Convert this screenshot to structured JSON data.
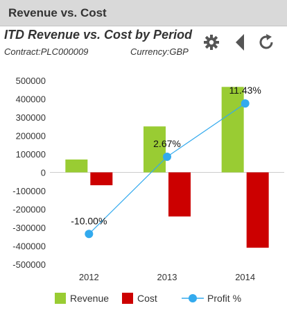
{
  "panel": {
    "title": "Revenue vs. Cost",
    "chart_title": "ITD Revenue vs. Cost by Period",
    "contract": "Contract:PLC000009",
    "currency": "Currency:GBP"
  },
  "toolbar": {
    "icons": [
      "gear-icon",
      "back-triangle-icon",
      "refresh-icon"
    ],
    "icon_color": "#555555"
  },
  "colors": {
    "revenue": "#99cc33",
    "cost": "#cc0000",
    "profit": "#33aaee",
    "header_bg": "#d9d9d9"
  },
  "chart_data": {
    "type": "bar",
    "categories": [
      "2012",
      "2013",
      "2014"
    ],
    "series": [
      {
        "name": "Revenue",
        "type": "bar",
        "values": [
          70000,
          250000,
          465000
        ]
      },
      {
        "name": "Cost",
        "type": "bar",
        "values": [
          -70000,
          -240000,
          -410000
        ]
      },
      {
        "name": "Profit %",
        "type": "line",
        "values": [
          -335000,
          85000,
          375000
        ],
        "labels": [
          "-10.00%",
          "2.67%",
          "11.43%"
        ]
      }
    ],
    "ylim": [
      -500000,
      500000
    ],
    "yticks": [
      "500000",
      "400000",
      "300000",
      "200000",
      "100000",
      "0",
      "-100000",
      "-200000",
      "-300000",
      "-400000",
      "-500000"
    ],
    "grid": false,
    "legend_position": "bottom"
  }
}
